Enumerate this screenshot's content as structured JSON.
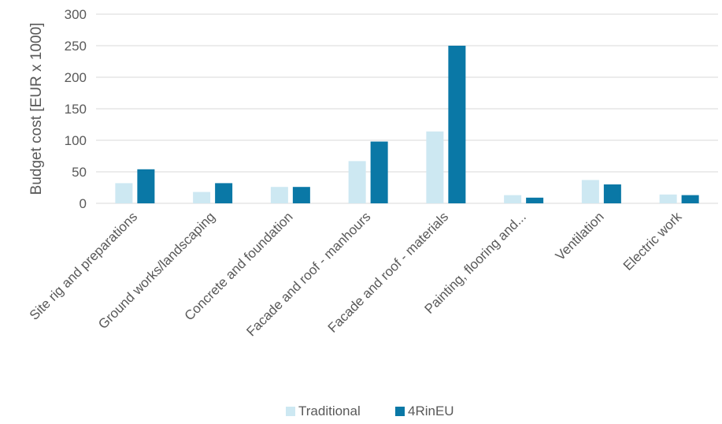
{
  "chart_data": {
    "type": "bar",
    "ylabel": "Budget cost [EUR x 1000]",
    "xlabel": "",
    "ylim": [
      0,
      300
    ],
    "yticks": [
      0,
      50,
      100,
      150,
      200,
      250,
      300
    ],
    "grid": true,
    "legend_position": "bottom",
    "categories": [
      "Site rig and preparations",
      "Ground works/landscaping",
      "Concrete and foundation",
      "Facade and roof - manhours",
      "Facade and roof - materials",
      "Painting, flooring and...",
      "Ventilation",
      "Electric work"
    ],
    "series": [
      {
        "name": "Traditional",
        "color": "#cde8f2",
        "values": [
          32,
          18,
          26,
          67,
          114,
          13,
          37,
          14
        ]
      },
      {
        "name": "4RinEU",
        "color": "#0a78a6",
        "values": [
          54,
          32,
          26,
          98,
          250,
          9,
          30,
          13
        ]
      }
    ]
  }
}
